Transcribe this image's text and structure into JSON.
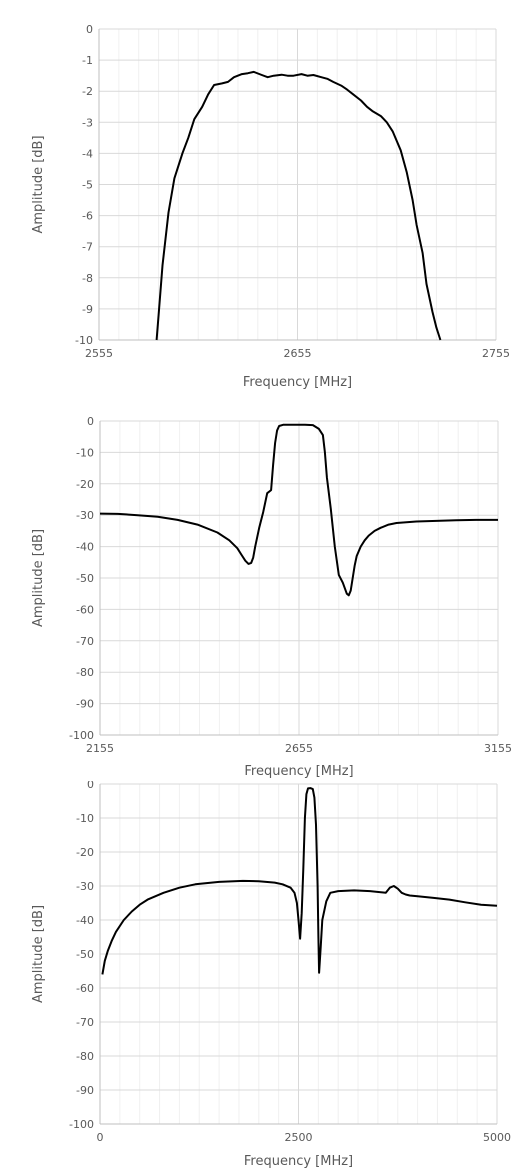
{
  "chart_data": [
    {
      "type": "line",
      "title": "",
      "xlabel": "Frequency [MHz]",
      "ylabel": "Amplitude [dB]",
      "xlim": [
        2555,
        2755
      ],
      "ylim": [
        -10,
        0
      ],
      "xticks": [
        2555,
        2655,
        2755
      ],
      "yticks": [
        0,
        -1,
        -2,
        -3,
        -4,
        -5,
        -6,
        -7,
        -8,
        -9,
        -10
      ],
      "grid": true,
      "legend": "none",
      "line_color": "#000000",
      "series": [
        {
          "x": [
            2584,
            2585,
            2587,
            2590,
            2593,
            2597,
            2600,
            2603,
            2607,
            2610,
            2613,
            2617,
            2620,
            2623,
            2627,
            2630,
            2633,
            2637,
            2640,
            2643,
            2647,
            2650,
            2653,
            2657,
            2660,
            2663,
            2667,
            2670,
            2673,
            2677,
            2680,
            2683,
            2687,
            2690,
            2693,
            2697,
            2700,
            2703,
            2707,
            2710,
            2713,
            2715,
            2718,
            2720,
            2723,
            2725,
            2727
          ],
          "y": [
            -10.0,
            -9.2,
            -7.6,
            -5.9,
            -4.8,
            -4.0,
            -3.5,
            -2.9,
            -2.5,
            -2.1,
            -1.8,
            -1.75,
            -1.7,
            -1.55,
            -1.45,
            -1.42,
            -1.38,
            -1.48,
            -1.55,
            -1.5,
            -1.47,
            -1.5,
            -1.5,
            -1.45,
            -1.5,
            -1.48,
            -1.55,
            -1.6,
            -1.7,
            -1.82,
            -1.95,
            -2.1,
            -2.3,
            -2.5,
            -2.65,
            -2.8,
            -3.0,
            -3.3,
            -3.9,
            -4.6,
            -5.5,
            -6.3,
            -7.2,
            -8.2,
            -9.1,
            -9.6,
            -10.0
          ]
        }
      ]
    },
    {
      "type": "line",
      "title": "",
      "xlabel": "Frequency [MHz]",
      "ylabel": "Amplitude [dB]",
      "xlim": [
        2155,
        3155
      ],
      "ylim": [
        -100,
        0
      ],
      "xticks": [
        2155,
        2655,
        3155
      ],
      "yticks": [
        0,
        -10,
        -20,
        -30,
        -40,
        -50,
        -60,
        -70,
        -80,
        -90,
        -100
      ],
      "grid": true,
      "legend": "none",
      "line_color": "#000000",
      "series": [
        {
          "x": [
            2155,
            2200,
            2250,
            2300,
            2350,
            2400,
            2450,
            2480,
            2500,
            2510,
            2520,
            2528,
            2535,
            2540,
            2545,
            2555,
            2565,
            2575,
            2585,
            2590,
            2595,
            2600,
            2605,
            2615,
            2630,
            2650,
            2670,
            2690,
            2705,
            2715,
            2720,
            2725,
            2735,
            2745,
            2755,
            2765,
            2775,
            2780,
            2785,
            2790,
            2795,
            2800,
            2810,
            2820,
            2830,
            2845,
            2860,
            2880,
            2900,
            2950,
            3000,
            3050,
            3100,
            3155
          ],
          "y": [
            -29.5,
            -29.6,
            -30.0,
            -30.5,
            -31.5,
            -33.0,
            -35.5,
            -38.0,
            -40.5,
            -42.5,
            -44.5,
            -45.5,
            -45.2,
            -43.5,
            -40.0,
            -34.0,
            -29.0,
            -23.0,
            -22.0,
            -14.0,
            -7.0,
            -3.0,
            -1.6,
            -1.2,
            -1.2,
            -1.2,
            -1.2,
            -1.3,
            -2.5,
            -4.5,
            -10.0,
            -18.0,
            -28.0,
            -40.0,
            -49.0,
            -51.5,
            -55.0,
            -55.5,
            -54.0,
            -50.0,
            -46.0,
            -43.0,
            -40.0,
            -38.0,
            -36.5,
            -35.0,
            -34.0,
            -33.0,
            -32.5,
            -32.0,
            -31.8,
            -31.6,
            -31.5,
            -31.5
          ]
        }
      ]
    },
    {
      "type": "line",
      "title": "",
      "xlabel": "Frequency [MHz]",
      "ylabel": "Amplitude [dB]",
      "xlim": [
        0,
        5000
      ],
      "ylim": [
        -100,
        0
      ],
      "xticks": [
        0,
        2500,
        5000
      ],
      "yticks": [
        0,
        -10,
        -20,
        -30,
        -40,
        -50,
        -60,
        -70,
        -80,
        -90,
        -100
      ],
      "grid": true,
      "legend": "none",
      "line_color": "#000000",
      "series": [
        {
          "x": [
            30,
            60,
            100,
            150,
            200,
            300,
            400,
            500,
            600,
            800,
            1000,
            1200,
            1500,
            1800,
            2000,
            2200,
            2300,
            2400,
            2450,
            2480,
            2500,
            2520,
            2540,
            2560,
            2580,
            2600,
            2620,
            2650,
            2680,
            2700,
            2720,
            2740,
            2750,
            2760,
            2780,
            2800,
            2850,
            2900,
            3000,
            3200,
            3400,
            3600,
            3650,
            3700,
            3750,
            3800,
            3850,
            3900,
            4000,
            4200,
            4400,
            4600,
            4800,
            5000
          ],
          "y": [
            -56.0,
            -52.0,
            -49.0,
            -46.0,
            -43.5,
            -40.0,
            -37.5,
            -35.5,
            -34.0,
            -32.0,
            -30.5,
            -29.5,
            -28.8,
            -28.5,
            -28.6,
            -29.0,
            -29.5,
            -30.5,
            -32.0,
            -35.0,
            -40.0,
            -45.5,
            -38.0,
            -25.0,
            -10.0,
            -3.0,
            -1.3,
            -1.2,
            -1.5,
            -4.0,
            -12.0,
            -30.0,
            -45.0,
            -55.5,
            -48.0,
            -40.0,
            -34.5,
            -32.0,
            -31.5,
            -31.3,
            -31.5,
            -32.0,
            -30.5,
            -30.0,
            -30.8,
            -32.0,
            -32.5,
            -32.8,
            -33.0,
            -33.5,
            -34.0,
            -34.8,
            -35.5,
            -35.8
          ]
        }
      ]
    }
  ]
}
